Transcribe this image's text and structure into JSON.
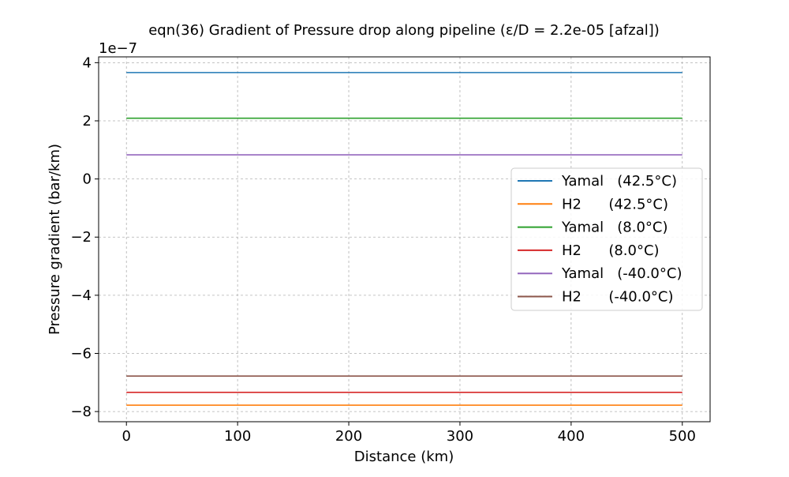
{
  "chart_data": {
    "type": "line",
    "title": "eqn(36) Gradient of Pressure drop along pipeline (ε/D = 2.2e-05 [afzal])",
    "xlabel": "Distance (km)",
    "ylabel": "Pressure gradient (bar/km)",
    "y_offset_label": "1e−7",
    "y_scale": 1e-07,
    "xlim": [
      -25,
      525
    ],
    "ylim": [
      -8.35,
      4.2
    ],
    "x_ticks": [
      0,
      100,
      200,
      300,
      400,
      500
    ],
    "x_tick_labels": [
      "0",
      "100",
      "200",
      "300",
      "400",
      "500"
    ],
    "y_ticks": [
      -8,
      -6,
      -4,
      -2,
      0,
      2,
      4
    ],
    "y_tick_labels": [
      "−8",
      "−6",
      "−4",
      "−2",
      "0",
      "2",
      "4"
    ],
    "grid": true,
    "legend_position": "center-right",
    "x": [
      0,
      500
    ],
    "series": [
      {
        "name": "Yamal   (42.5°C)",
        "color": "#1f77b4",
        "values": [
          3.66,
          3.66
        ]
      },
      {
        "name": "H2      (42.5°C)",
        "color": "#ff7f0e",
        "values": [
          -7.78,
          -7.78
        ]
      },
      {
        "name": "Yamal   (8.0°C)",
        "color": "#2ca02c",
        "values": [
          2.09,
          2.09
        ]
      },
      {
        "name": "H2      (8.0°C)",
        "color": "#d62728",
        "values": [
          -7.34,
          -7.34
        ]
      },
      {
        "name": "Yamal   (-40.0°C)",
        "color": "#9467bd",
        "values": [
          0.83,
          0.83
        ]
      },
      {
        "name": "H2      (-40.0°C)",
        "color": "#8c564b",
        "values": [
          -6.78,
          -6.78
        ]
      }
    ]
  }
}
